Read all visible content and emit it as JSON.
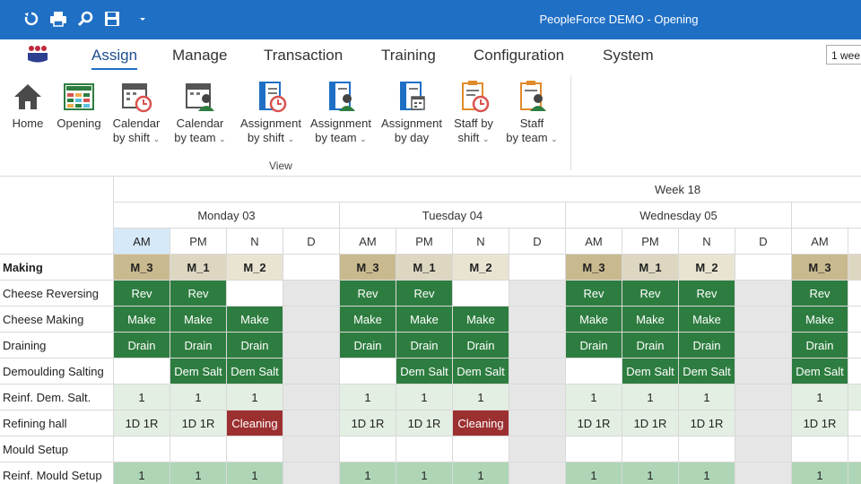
{
  "window": {
    "title": "PeopleForce DEMO - Opening"
  },
  "quick_access": [
    {
      "icon": "refresh-icon"
    },
    {
      "icon": "print-icon"
    },
    {
      "icon": "search-icon"
    },
    {
      "icon": "save-icon"
    },
    {
      "icon": "dropdown-arrow-icon"
    }
  ],
  "menu": {
    "tabs": [
      "Assign",
      "Manage",
      "Transaction",
      "Training",
      "Configuration",
      "System"
    ],
    "active": "Assign",
    "week_select": "1 wee"
  },
  "ribbon": {
    "group_label": "View",
    "buttons": [
      {
        "line1": "Home",
        "line2": "",
        "icon": "home-icon"
      },
      {
        "line1": "Opening",
        "line2": "",
        "icon": "grid-calendar-icon"
      },
      {
        "line1": "Calendar",
        "line2": "by shift",
        "icon": "calendar-clock-icon"
      },
      {
        "line1": "Calendar",
        "line2": "by team",
        "icon": "calendar-person-icon"
      },
      {
        "line1": "Assignment",
        "line2": "by shift",
        "icon": "assignment-clock-icon"
      },
      {
        "line1": "Assignment",
        "line2": "by team",
        "icon": "assignment-person-icon"
      },
      {
        "line1": "Assignment",
        "line2": "by day",
        "icon": "assignment-calendar-icon"
      },
      {
        "line1": "Staff by",
        "line2": "shift",
        "icon": "staff-clock-icon"
      },
      {
        "line1": "Staff",
        "line2": "by team",
        "icon": "staff-person-icon"
      }
    ]
  },
  "grid": {
    "week_label": "Week 18",
    "section_label": "Making",
    "days": [
      "Monday 03",
      "Tuesday 04",
      "Wednesday 05"
    ],
    "shifts": [
      "AM",
      "PM",
      "N",
      "D"
    ],
    "shift_codes": [
      "M_3",
      "M_1",
      "M_2",
      ""
    ],
    "rows": [
      {
        "label": "Cheese Reversing",
        "days": [
          [
            "Rev",
            "Rev",
            "",
            ""
          ],
          [
            "Rev",
            "Rev",
            "",
            ""
          ],
          [
            "Rev",
            "Rev",
            "Rev",
            ""
          ],
          [
            "Rev"
          ]
        ]
      },
      {
        "label": "Cheese Making",
        "days": [
          [
            "Make",
            "Make",
            "Make",
            ""
          ],
          [
            "Make",
            "Make",
            "Make",
            ""
          ],
          [
            "Make",
            "Make",
            "Make",
            ""
          ],
          [
            "Make"
          ]
        ]
      },
      {
        "label": "Draining",
        "days": [
          [
            "Drain",
            "Drain",
            "Drain",
            ""
          ],
          [
            "Drain",
            "Drain",
            "Drain",
            ""
          ],
          [
            "Drain",
            "Drain",
            "Drain",
            ""
          ],
          [
            "Drain"
          ]
        ]
      },
      {
        "label": "Demoulding Salting",
        "days": [
          [
            "",
            "Dem Salt",
            "Dem Salt",
            ""
          ],
          [
            "",
            "Dem Salt",
            "Dem Salt",
            ""
          ],
          [
            "",
            "Dem Salt",
            "Dem Salt",
            ""
          ],
          [
            "Dem Salt"
          ]
        ]
      },
      {
        "label": "Reinf. Dem. Salt.",
        "days": [
          [
            "1",
            "1",
            "1",
            ""
          ],
          [
            "1",
            "1",
            "1",
            ""
          ],
          [
            "1",
            "1",
            "1",
            ""
          ],
          [
            "1"
          ]
        ]
      },
      {
        "label": "Refining hall",
        "days": [
          [
            "1D 1R",
            "1D 1R",
            "Cleaning",
            ""
          ],
          [
            "1D 1R",
            "1D 1R",
            "Cleaning",
            ""
          ],
          [
            "1D 1R",
            "1D 1R",
            "1D 1R",
            ""
          ],
          [
            "1D 1R"
          ]
        ]
      },
      {
        "label": "Mould Setup",
        "days": [
          [
            "",
            "",
            "",
            ""
          ],
          [
            "",
            "",
            "",
            ""
          ],
          [
            "",
            "",
            "",
            ""
          ],
          [
            ""
          ]
        ]
      },
      {
        "label": "Reinf. Mould Setup",
        "days": [
          [
            "1",
            "1",
            "1",
            ""
          ],
          [
            "1",
            "1",
            "1",
            ""
          ],
          [
            "1",
            "1",
            "1",
            ""
          ],
          [
            "1"
          ]
        ]
      }
    ]
  },
  "colors": {
    "titlebar": "#1f6fc5",
    "assigned": "#2e7d40",
    "cleaning": "#9c3030",
    "count": "#e3efe2"
  }
}
